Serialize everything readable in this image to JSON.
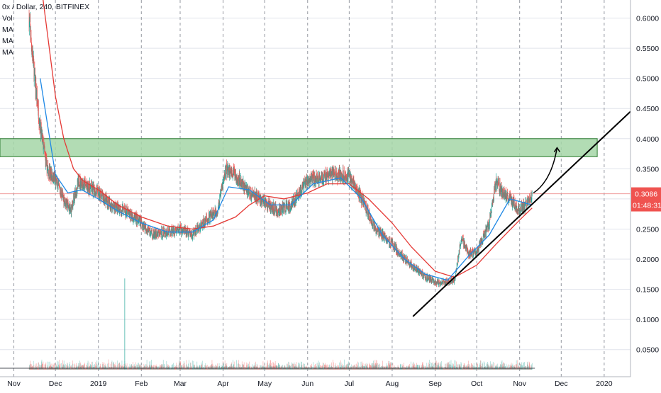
{
  "header": {
    "title": "0x / Dollar, 240, BITFINEX",
    "indicators": [
      "Vol",
      "MA",
      "MA",
      "MA"
    ]
  },
  "price_tag": {
    "price": "0.3086",
    "countdown": "01:48:31"
  },
  "colors": {
    "up": "#26a69a",
    "down": "#ef5350",
    "ma_slow": "#e53935",
    "ma_fast": "#1e88e5",
    "resistance_zone": "#a5d6a7",
    "zone_border": "#2e7d32",
    "grid": "#e0e3eb",
    "price_line": "#ef9a9a"
  },
  "chart_data": {
    "type": "candlestick",
    "title": "0x / Dollar, 240, BITFINEX",
    "xlabel": "",
    "ylabel": "",
    "ylim": [
      0.005,
      0.63
    ],
    "x_range": [
      "2018-10-22",
      "2020-01-20"
    ],
    "y_ticks": [
      "0.6000",
      "0.5500",
      "0.5000",
      "0.4500",
      "0.4000",
      "0.3500",
      "0.3000",
      "0.2500",
      "0.2000",
      "0.1500",
      "0.1000",
      "0.0500"
    ],
    "x_ticks": [
      {
        "label": "Nov",
        "date": "2018-11-01"
      },
      {
        "label": "Dec",
        "date": "2018-12-01"
      },
      {
        "label": "2019",
        "date": "2019-01-01"
      },
      {
        "label": "Feb",
        "date": "2019-02-01"
      },
      {
        "label": "Mar",
        "date": "2019-03-01"
      },
      {
        "label": "Apr",
        "date": "2019-04-01"
      },
      {
        "label": "May",
        "date": "2019-05-01"
      },
      {
        "label": "Jun",
        "date": "2019-06-01"
      },
      {
        "label": "Jul",
        "date": "2019-07-01"
      },
      {
        "label": "Aug",
        "date": "2019-08-01"
      },
      {
        "label": "Sep",
        "date": "2019-09-01"
      },
      {
        "label": "Oct",
        "date": "2019-10-01"
      },
      {
        "label": "Nov",
        "date": "2019-11-01"
      },
      {
        "label": "Dec",
        "date": "2019-12-01"
      },
      {
        "label": "2020",
        "date": "2020-01-01"
      }
    ],
    "grid": true,
    "price_path": [
      [
        "2018-11-12",
        0.6
      ],
      [
        "2018-11-16",
        0.5
      ],
      [
        "2018-11-20",
        0.42
      ],
      [
        "2018-11-25",
        0.35
      ],
      [
        "2018-12-01",
        0.33
      ],
      [
        "2018-12-07",
        0.3
      ],
      [
        "2018-12-12",
        0.28
      ],
      [
        "2018-12-18",
        0.33
      ],
      [
        "2018-12-24",
        0.32
      ],
      [
        "2019-01-01",
        0.31
      ],
      [
        "2019-01-10",
        0.29
      ],
      [
        "2019-01-20",
        0.28
      ],
      [
        "2019-02-01",
        0.26
      ],
      [
        "2019-02-10",
        0.24
      ],
      [
        "2019-02-20",
        0.245
      ],
      [
        "2019-03-01",
        0.25
      ],
      [
        "2019-03-10",
        0.24
      ],
      [
        "2019-03-20",
        0.265
      ],
      [
        "2019-03-28",
        0.28
      ],
      [
        "2019-04-03",
        0.35
      ],
      [
        "2019-04-10",
        0.34
      ],
      [
        "2019-04-20",
        0.31
      ],
      [
        "2019-05-01",
        0.295
      ],
      [
        "2019-05-10",
        0.28
      ],
      [
        "2019-05-20",
        0.29
      ],
      [
        "2019-06-01",
        0.33
      ],
      [
        "2019-06-10",
        0.335
      ],
      [
        "2019-06-20",
        0.34
      ],
      [
        "2019-06-30",
        0.34
      ],
      [
        "2019-07-10",
        0.3
      ],
      [
        "2019-07-20",
        0.25
      ],
      [
        "2019-07-30",
        0.23
      ],
      [
        "2019-08-10",
        0.2
      ],
      [
        "2019-08-20",
        0.18
      ],
      [
        "2019-08-25",
        0.17
      ],
      [
        "2019-09-05",
        0.16
      ],
      [
        "2019-09-15",
        0.165
      ],
      [
        "2019-09-20",
        0.235
      ],
      [
        "2019-09-25",
        0.21
      ],
      [
        "2019-10-01",
        0.21
      ],
      [
        "2019-10-10",
        0.26
      ],
      [
        "2019-10-15",
        0.33
      ],
      [
        "2019-10-20",
        0.31
      ],
      [
        "2019-10-25",
        0.3
      ],
      [
        "2019-11-01",
        0.28
      ],
      [
        "2019-11-05",
        0.29
      ],
      [
        "2019-11-10",
        0.305
      ]
    ],
    "series": [
      {
        "type": "ma",
        "color": "#e53935",
        "points": [
          [
            "2018-11-21",
            0.65
          ],
          [
            "2018-11-26",
            0.56
          ],
          [
            "2018-12-01",
            0.47
          ],
          [
            "2018-12-07",
            0.4
          ],
          [
            "2018-12-14",
            0.35
          ],
          [
            "2018-12-21",
            0.33
          ],
          [
            "2019-01-01",
            0.315
          ],
          [
            "2019-01-15",
            0.29
          ],
          [
            "2019-02-01",
            0.27
          ],
          [
            "2019-02-20",
            0.255
          ],
          [
            "2019-03-10",
            0.25
          ],
          [
            "2019-03-25",
            0.255
          ],
          [
            "2019-04-10",
            0.27
          ],
          [
            "2019-04-20",
            0.29
          ],
          [
            "2019-05-01",
            0.305
          ],
          [
            "2019-05-15",
            0.3
          ],
          [
            "2019-06-01",
            0.31
          ],
          [
            "2019-06-15",
            0.325
          ],
          [
            "2019-07-01",
            0.325
          ],
          [
            "2019-07-15",
            0.3
          ],
          [
            "2019-08-01",
            0.26
          ],
          [
            "2019-08-15",
            0.22
          ],
          [
            "2019-09-01",
            0.18
          ],
          [
            "2019-09-15",
            0.17
          ],
          [
            "2019-10-01",
            0.19
          ],
          [
            "2019-10-15",
            0.225
          ],
          [
            "2019-11-01",
            0.265
          ],
          [
            "2019-11-10",
            0.285
          ]
        ]
      },
      {
        "type": "ma",
        "color": "#1e88e5",
        "points": [
          [
            "2018-11-20",
            0.5
          ],
          [
            "2018-12-01",
            0.34
          ],
          [
            "2018-12-10",
            0.31
          ],
          [
            "2018-12-20",
            0.315
          ],
          [
            "2019-01-01",
            0.3
          ],
          [
            "2019-01-15",
            0.28
          ],
          [
            "2019-02-01",
            0.26
          ],
          [
            "2019-02-20",
            0.245
          ],
          [
            "2019-03-10",
            0.245
          ],
          [
            "2019-03-25",
            0.265
          ],
          [
            "2019-04-05",
            0.32
          ],
          [
            "2019-04-20",
            0.315
          ],
          [
            "2019-05-05",
            0.29
          ],
          [
            "2019-05-20",
            0.29
          ],
          [
            "2019-06-05",
            0.325
          ],
          [
            "2019-06-25",
            0.335
          ],
          [
            "2019-07-10",
            0.3
          ],
          [
            "2019-07-25",
            0.24
          ],
          [
            "2019-08-10",
            0.2
          ],
          [
            "2019-08-25",
            0.175
          ],
          [
            "2019-09-10",
            0.165
          ],
          [
            "2019-09-25",
            0.205
          ],
          [
            "2019-10-10",
            0.24
          ],
          [
            "2019-10-25",
            0.3
          ],
          [
            "2019-11-10",
            0.29
          ]
        ]
      }
    ],
    "annotations": {
      "resistance_zone": {
        "from": "2018-10-22",
        "to": "2019-12-27",
        "low": 0.37,
        "high": 0.4
      },
      "current_price_line": 0.3086,
      "trendline": {
        "start": [
          "2019-08-16",
          0.105
        ],
        "end": [
          "2020-01-20",
          0.445
        ]
      },
      "arrow_path": [
        [
          "2019-11-11",
          0.31
        ],
        [
          "2019-11-24",
          0.33
        ],
        [
          "2019-11-28",
          0.385
        ]
      ]
    },
    "volume": {
      "spike": [
        "2019-01-20",
        0.168
      ]
    }
  }
}
